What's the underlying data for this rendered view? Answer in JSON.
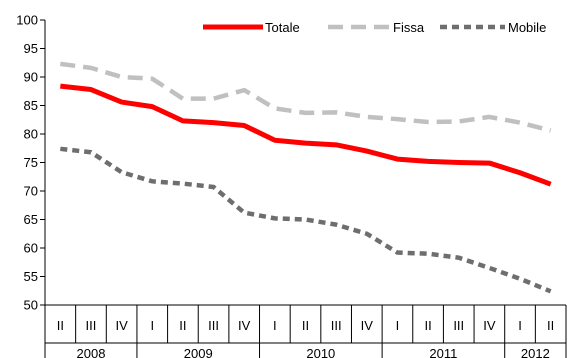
{
  "chart_data": {
    "type": "line",
    "ylim": [
      50,
      100
    ],
    "yticks": [
      "50",
      "55",
      "60",
      "65",
      "70",
      "75",
      "80",
      "85",
      "90",
      "95",
      "100"
    ],
    "categories": [
      "II",
      "III",
      "IV",
      "I",
      "II",
      "III",
      "IV",
      "I",
      "II",
      "III",
      "IV",
      "I",
      "II",
      "III",
      "IV",
      "I",
      "II"
    ],
    "years": [
      {
        "label": "2008",
        "count": 3
      },
      {
        "label": "2009",
        "count": 4
      },
      {
        "label": "2010",
        "count": 4
      },
      {
        "label": "2011",
        "count": 4
      },
      {
        "label": "2012",
        "count": 2
      }
    ],
    "grid": false,
    "legend_position": "top-right",
    "series": [
      {
        "name": "Totale",
        "color": "#ff0000",
        "style": "solid",
        "values": [
          88.4,
          87.8,
          85.6,
          84.8,
          82.3,
          82.0,
          81.5,
          78.9,
          78.4,
          78.1,
          77.0,
          75.6,
          75.2,
          75.0,
          74.9,
          73.2,
          71.2
        ]
      },
      {
        "name": "Fissa",
        "color": "#c0c0c0",
        "style": "dash",
        "values": [
          92.3,
          91.6,
          90.0,
          89.7,
          86.2,
          86.2,
          87.7,
          84.5,
          83.7,
          83.8,
          83.0,
          82.6,
          82.1,
          82.2,
          83.0,
          82.0,
          80.6
        ]
      },
      {
        "name": "Mobile",
        "color": "#6e6e6e",
        "style": "short-dash",
        "values": [
          77.4,
          76.8,
          73.3,
          71.7,
          71.3,
          70.7,
          66.2,
          65.2,
          65.0,
          64.1,
          62.5,
          59.2,
          59.0,
          58.3,
          56.5,
          54.6,
          52.4
        ]
      }
    ]
  }
}
